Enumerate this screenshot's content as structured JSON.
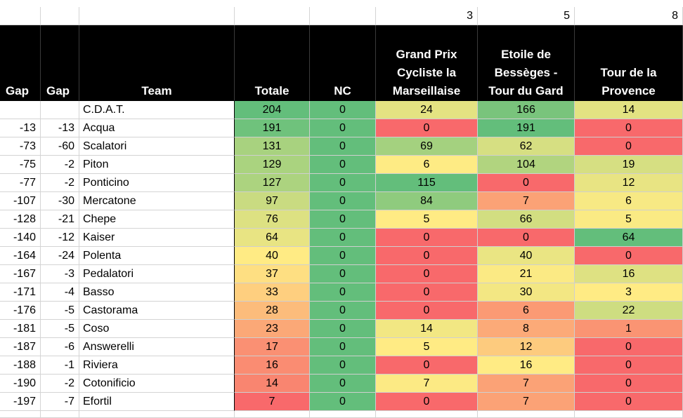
{
  "sheet": {
    "title_partial": "",
    "top_numbers": [
      "",
      "",
      "",
      "",
      "",
      "3",
      "5",
      "8"
    ],
    "headers": [
      "Gap",
      "Gap",
      "Team",
      "Totale",
      "NC",
      "Grand Prix Cycliste la Marseillaise",
      "Etoile de Bessèges - Tour du Gard",
      "Tour de la Provence"
    ],
    "rows": [
      {
        "gap1": "",
        "gap2": "",
        "team": "C.D.A.T.",
        "totale": "204",
        "nc": "0",
        "r1": "24",
        "r2": "166",
        "r3": "14"
      },
      {
        "gap1": "-13",
        "gap2": "-13",
        "team": "Acqua",
        "totale": "191",
        "nc": "0",
        "r1": "0",
        "r2": "191",
        "r3": "0"
      },
      {
        "gap1": "-73",
        "gap2": "-60",
        "team": "Scalatori",
        "totale": "131",
        "nc": "0",
        "r1": "69",
        "r2": "62",
        "r3": "0"
      },
      {
        "gap1": "-75",
        "gap2": "-2",
        "team": "Piton",
        "totale": "129",
        "nc": "0",
        "r1": "6",
        "r2": "104",
        "r3": "19"
      },
      {
        "gap1": "-77",
        "gap2": "-2",
        "team": "Ponticino",
        "totale": "127",
        "nc": "0",
        "r1": "115",
        "r2": "0",
        "r3": "12"
      },
      {
        "gap1": "-107",
        "gap2": "-30",
        "team": "Mercatone",
        "totale": "97",
        "nc": "0",
        "r1": "84",
        "r2": "7",
        "r3": "6"
      },
      {
        "gap1": "-128",
        "gap2": "-21",
        "team": "Chepe",
        "totale": "76",
        "nc": "0",
        "r1": "5",
        "r2": "66",
        "r3": "5"
      },
      {
        "gap1": "-140",
        "gap2": "-12",
        "team": "Kaiser",
        "totale": "64",
        "nc": "0",
        "r1": "0",
        "r2": "0",
        "r3": "64"
      },
      {
        "gap1": "-164",
        "gap2": "-24",
        "team": "Polenta",
        "totale": "40",
        "nc": "0",
        "r1": "0",
        "r2": "40",
        "r3": "0"
      },
      {
        "gap1": "-167",
        "gap2": "-3",
        "team": "Pedalatori",
        "totale": "37",
        "nc": "0",
        "r1": "0",
        "r2": "21",
        "r3": "16"
      },
      {
        "gap1": "-171",
        "gap2": "-4",
        "team": "Basso",
        "totale": "33",
        "nc": "0",
        "r1": "0",
        "r2": "30",
        "r3": "3"
      },
      {
        "gap1": "-176",
        "gap2": "-5",
        "team": "Castorama",
        "totale": "28",
        "nc": "0",
        "r1": "0",
        "r2": "6",
        "r3": "22"
      },
      {
        "gap1": "-181",
        "gap2": "-5",
        "team": "Coso",
        "totale": "23",
        "nc": "0",
        "r1": "14",
        "r2": "8",
        "r3": "1"
      },
      {
        "gap1": "-187",
        "gap2": "-6",
        "team": "Answerelli",
        "totale": "17",
        "nc": "0",
        "r1": "5",
        "r2": "12",
        "r3": "0"
      },
      {
        "gap1": "-188",
        "gap2": "-1",
        "team": "Riviera",
        "totale": "16",
        "nc": "0",
        "r1": "0",
        "r2": "16",
        "r3": "0"
      },
      {
        "gap1": "-190",
        "gap2": "-2",
        "team": "Cotonificio",
        "totale": "14",
        "nc": "0",
        "r1": "7",
        "r2": "7",
        "r3": "0"
      },
      {
        "gap1": "-197",
        "gap2": "-7",
        "team": "Efortil",
        "totale": "7",
        "nc": "0",
        "r1": "0",
        "r2": "7",
        "r3": "0"
      }
    ],
    "colors": {
      "header_bg": "#000000",
      "header_fg": "#ffffff",
      "nc_green": "#63BE7B",
      "scale_green": "#63BE7B",
      "scale_yellow": "#FFEB84",
      "scale_red": "#F8696B"
    }
  }
}
